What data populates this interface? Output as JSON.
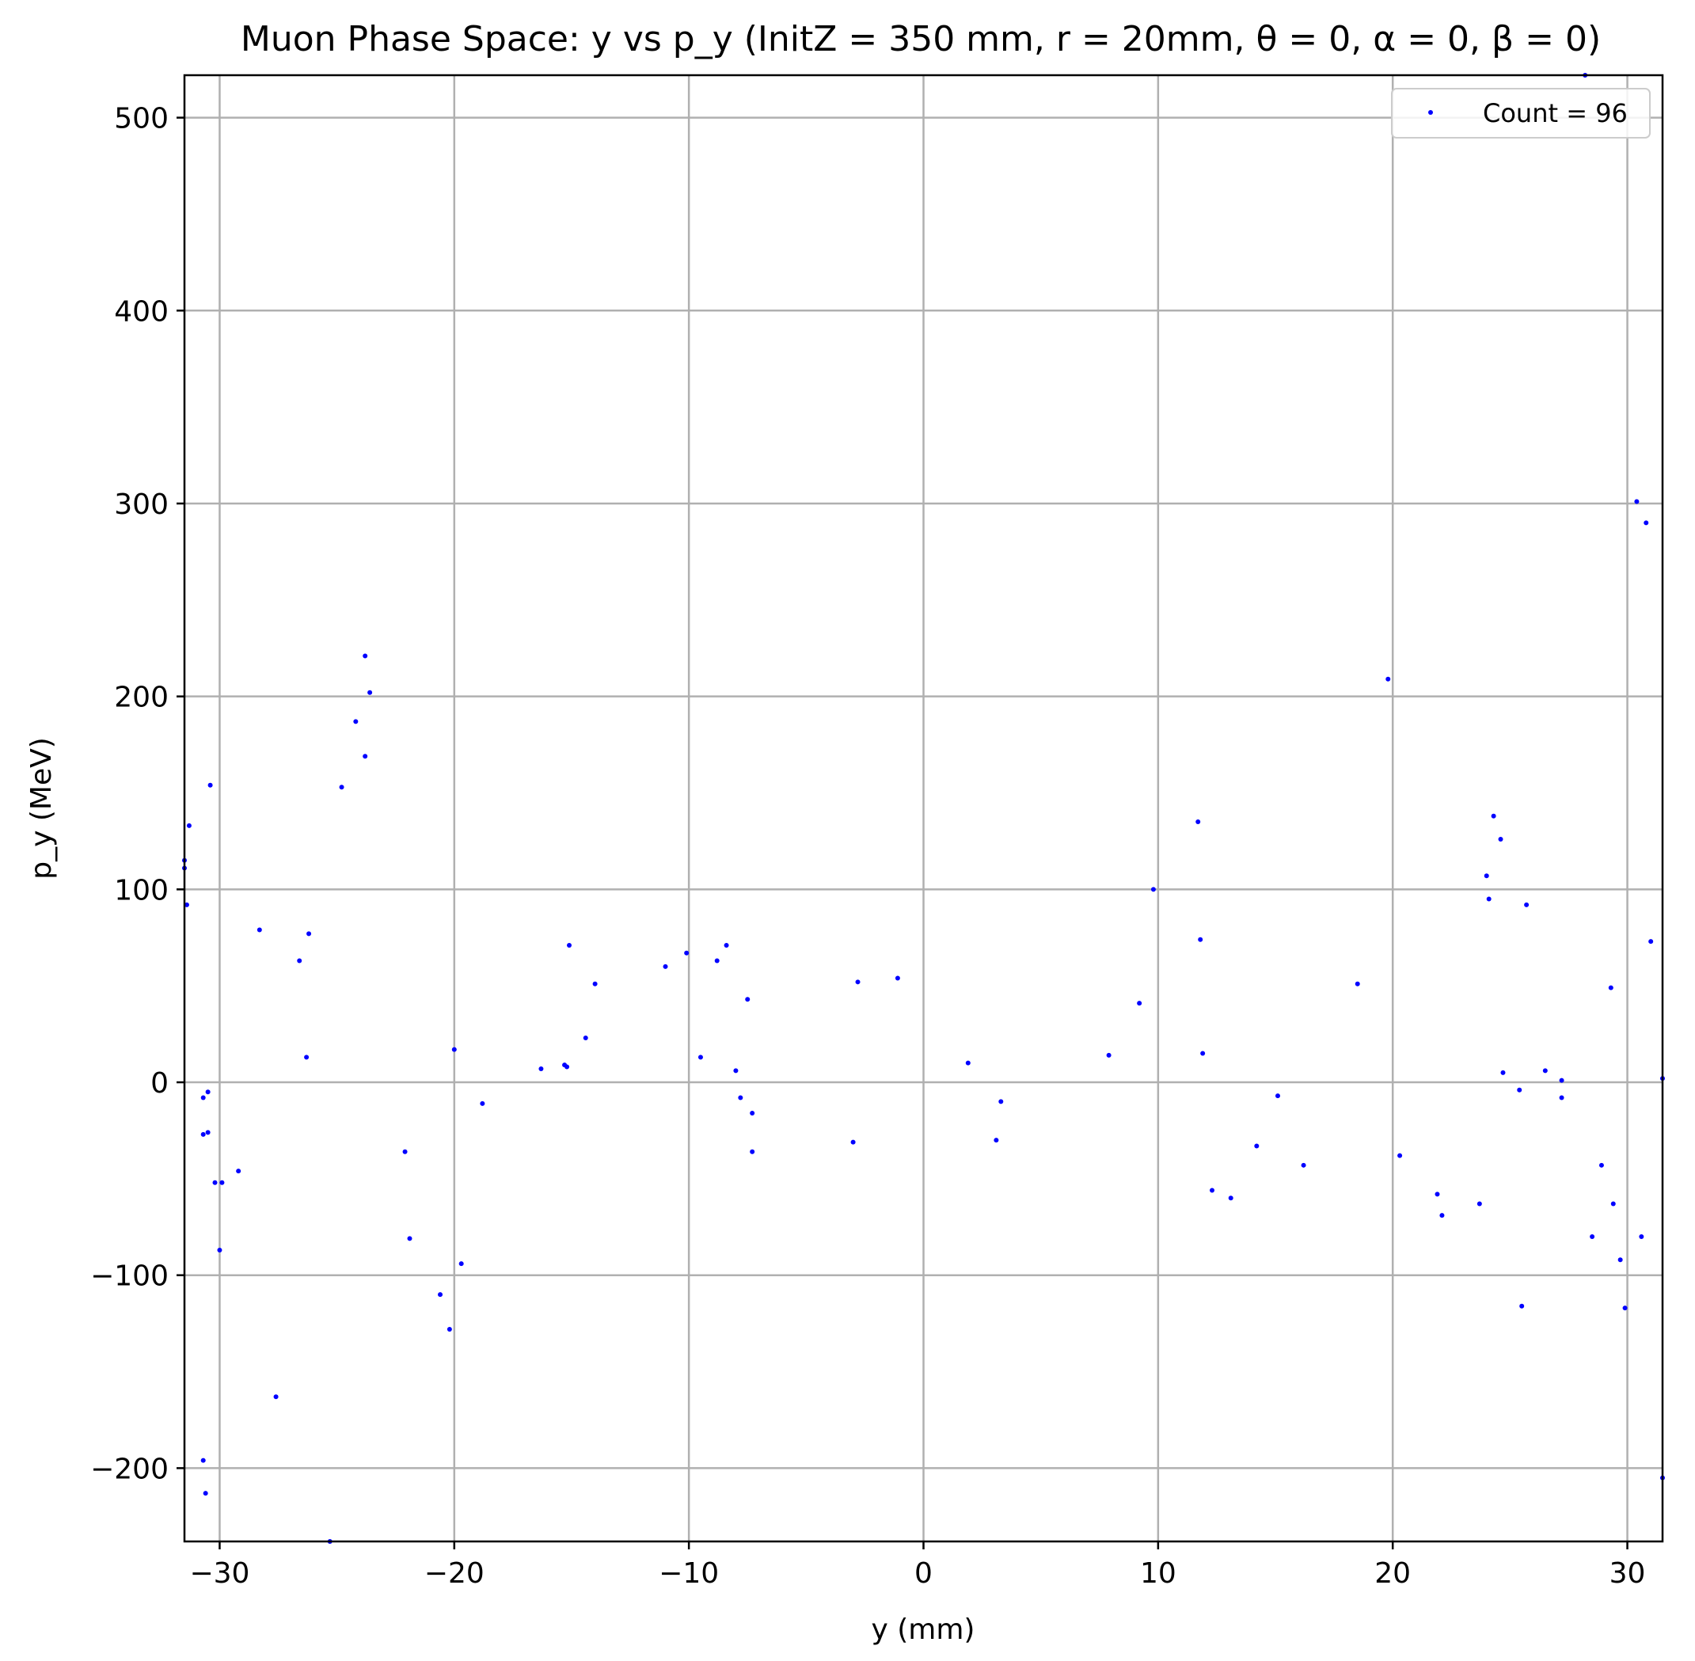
{
  "colors": {
    "points": "#0000ff",
    "grid": "#b0b0b0",
    "axes": "#000000",
    "legend_border": "#cccccc"
  },
  "chart_data": {
    "type": "scatter",
    "title": "Muon Phase Space: y vs p_y (InitZ = 350 mm, r = 20mm, θ = 0, α = 0, β = 0)",
    "xlabel": "y (mm)",
    "ylabel": "p_y (MeV)",
    "xlim": [
      -31.5,
      31.5
    ],
    "ylim": [
      -238,
      522
    ],
    "xticks": [
      -30,
      -20,
      -10,
      0,
      10,
      20,
      30
    ],
    "xtick_labels": [
      "−30",
      "−20",
      "−10",
      "0",
      "10",
      "20",
      "30"
    ],
    "yticks": [
      -200,
      -100,
      0,
      100,
      200,
      300,
      400,
      500
    ],
    "ytick_labels": [
      "−200",
      "−100",
      "0",
      "100",
      "200",
      "300",
      "400",
      "500"
    ],
    "grid": true,
    "legend": {
      "placement": "top-right",
      "entries": [
        "Count = 96"
      ]
    },
    "series": [
      {
        "name": "Count = 96",
        "color": "#0000ff",
        "points": [
          [
            -31.5,
            115
          ],
          [
            -31.5,
            111
          ],
          [
            -31.3,
            133
          ],
          [
            -31.4,
            92
          ],
          [
            -30.7,
            -8
          ],
          [
            -30.5,
            -5
          ],
          [
            -30.7,
            -27
          ],
          [
            -30.5,
            -26
          ],
          [
            -30.4,
            154
          ],
          [
            -30.2,
            -52
          ],
          [
            -29.9,
            -52
          ],
          [
            -30.0,
            -87
          ],
          [
            -30.7,
            -196
          ],
          [
            -30.6,
            -213
          ],
          [
            -29.2,
            -46
          ],
          [
            -28.3,
            79
          ],
          [
            -27.6,
            -163
          ],
          [
            -26.6,
            63
          ],
          [
            -26.3,
            13
          ],
          [
            -26.2,
            77
          ],
          [
            -25.3,
            -238
          ],
          [
            -24.8,
            153
          ],
          [
            -24.2,
            187
          ],
          [
            -23.8,
            221
          ],
          [
            -23.8,
            169
          ],
          [
            -23.6,
            202
          ],
          [
            -22.1,
            -36
          ],
          [
            -21.9,
            -81
          ],
          [
            -20.6,
            -110
          ],
          [
            -20.2,
            -128
          ],
          [
            -20.0,
            17
          ],
          [
            -19.7,
            -94
          ],
          [
            -18.8,
            -11
          ],
          [
            -16.3,
            7
          ],
          [
            -15.3,
            9
          ],
          [
            -15.1,
            71
          ],
          [
            -15.2,
            8
          ],
          [
            -14.4,
            23
          ],
          [
            -14.0,
            51
          ],
          [
            -11.0,
            60
          ],
          [
            -10.1,
            67
          ],
          [
            -9.5,
            13
          ],
          [
            -8.8,
            63
          ],
          [
            -8.4,
            71
          ],
          [
            -8.0,
            6
          ],
          [
            -7.8,
            -8
          ],
          [
            -7.5,
            43
          ],
          [
            -7.3,
            -16
          ],
          [
            -7.3,
            -36
          ],
          [
            -3.0,
            -31
          ],
          [
            -2.8,
            52
          ],
          [
            -1.1,
            54
          ],
          [
            1.9,
            10
          ],
          [
            3.1,
            -30
          ],
          [
            3.3,
            -10
          ],
          [
            7.9,
            14
          ],
          [
            9.2,
            41
          ],
          [
            9.8,
            100
          ],
          [
            11.7,
            135
          ],
          [
            11.8,
            74
          ],
          [
            11.9,
            15
          ],
          [
            12.3,
            -56
          ],
          [
            13.1,
            -60
          ],
          [
            14.2,
            -33
          ],
          [
            15.1,
            -7
          ],
          [
            16.2,
            -43
          ],
          [
            18.5,
            51
          ],
          [
            19.8,
            209
          ],
          [
            20.3,
            -38
          ],
          [
            21.9,
            -58
          ],
          [
            22.1,
            -69
          ],
          [
            23.7,
            -63
          ],
          [
            24.0,
            107
          ],
          [
            24.1,
            95
          ],
          [
            24.3,
            138
          ],
          [
            24.6,
            126
          ],
          [
            24.7,
            5
          ],
          [
            25.4,
            -4
          ],
          [
            25.5,
            -116
          ],
          [
            25.7,
            92
          ],
          [
            26.5,
            6
          ],
          [
            27.2,
            1
          ],
          [
            27.2,
            -8
          ],
          [
            28.2,
            522
          ],
          [
            28.5,
            -80
          ],
          [
            28.9,
            -43
          ],
          [
            29.3,
            49
          ],
          [
            29.4,
            -63
          ],
          [
            29.7,
            -92
          ],
          [
            29.9,
            -117
          ],
          [
            30.4,
            301
          ],
          [
            30.6,
            -80
          ],
          [
            30.8,
            290
          ],
          [
            31.0,
            73
          ],
          [
            31.5,
            -205
          ],
          [
            31.5,
            2
          ]
        ]
      }
    ]
  }
}
